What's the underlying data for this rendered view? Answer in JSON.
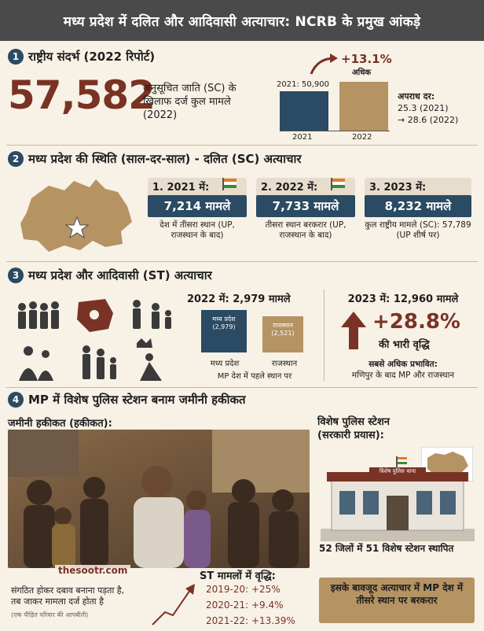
{
  "header": {
    "title": "मध्य प्रदेश में दलित और आदिवासी अत्याचार: NCRB के प्रमुख आंकड़े"
  },
  "section1": {
    "number": "1",
    "title": "राष्ट्रीय संदर्भ (2022 रिपोर्ट)",
    "big_number": "57,582",
    "big_desc": "अनुसूचित जाति (SC) के खिलाफ दर्ज कुल मामले (2022)",
    "bar_2021_label": "2021: 50,900",
    "increase": "+13.1%",
    "increase_sub": "अधिक",
    "x_2021": "2021",
    "x_2022": "2022",
    "rate_title": "अपराध दर:",
    "rate_2021": "25.3 (2021)",
    "rate_2022": "→ 28.6 (2022)"
  },
  "section2": {
    "number": "2",
    "title": "मध्य प्रदेश की स्थिति (साल-दर-साल) - दलित (SC) अत्याचार",
    "cards": [
      {
        "year": "1. 2021 में:",
        "cases": "7,214 मामले",
        "note": "देश में तीसरा स्थान (UP, राजस्थान के बाद)"
      },
      {
        "year": "2. 2022 में:",
        "cases": "7,733 मामले",
        "note": "तीसरा स्थान बरकरार (UP, राजस्थान के बाद)"
      },
      {
        "year": "3. 2023 में:",
        "cases": "8,232 मामले",
        "note": "कुल राष्ट्रीय मामले (SC): 57,789 (UP शीर्ष पर)"
      }
    ]
  },
  "section3": {
    "number": "3",
    "title": "मध्य प्रदेश और आदिवासी (ST) अत्याचार",
    "y2022": "2022 में: 2,979 मामले",
    "box_mp": "मध्य प्रदेश (2,979)",
    "box_raj": "राजस्थान (2,521)",
    "lbl_mp": "मध्य प्रदेश",
    "lbl_raj": "राजस्थान",
    "first_place": "MP देश में पहले स्थान पर",
    "y2023": "2023 में: 12,960 मामले",
    "growth": "+28.8%",
    "growth_sub": "की भारी वृद्धि",
    "affected1": "सबसे अधिक प्रभावित:",
    "affected2": "मणिपुर के बाद MP और राजस्थान"
  },
  "section4": {
    "number": "4",
    "title": "MP में विशेष पुलिस स्टेशन बनाम जमीनी हकीकत",
    "ground_title": "जमीनी हकीकत (हकीकत):",
    "watermark": "thesootr.com",
    "caption1": "संगठित होकर दबाव बनाना पड़ता है,",
    "caption2": "तब जाकर मामला दर्ज होता है",
    "caption3": "(एक पीड़ित परिवार की आपबीती)",
    "st_title": "ST मामलों में वृद्धि:",
    "st_rows": [
      "2019-20: +25%",
      "2020-21: +9.4%",
      "2021-22: +13.39%"
    ],
    "police_title": "विशेष पुलिस स्टेशन (सरकारी प्रयास):",
    "police_board": "विशेष पुलिस थाना",
    "stations": "52 जिलों में 51 विशेष स्टेशन स्थापित",
    "footer_box": "इसके बावजूद अत्याचार में MP देश में तीसरे स्थान पर बरकरार"
  },
  "colors": {
    "navy": "#2b4a63",
    "tan": "#b59363",
    "maroon": "#7a3224",
    "bg": "#f7f1e6"
  }
}
